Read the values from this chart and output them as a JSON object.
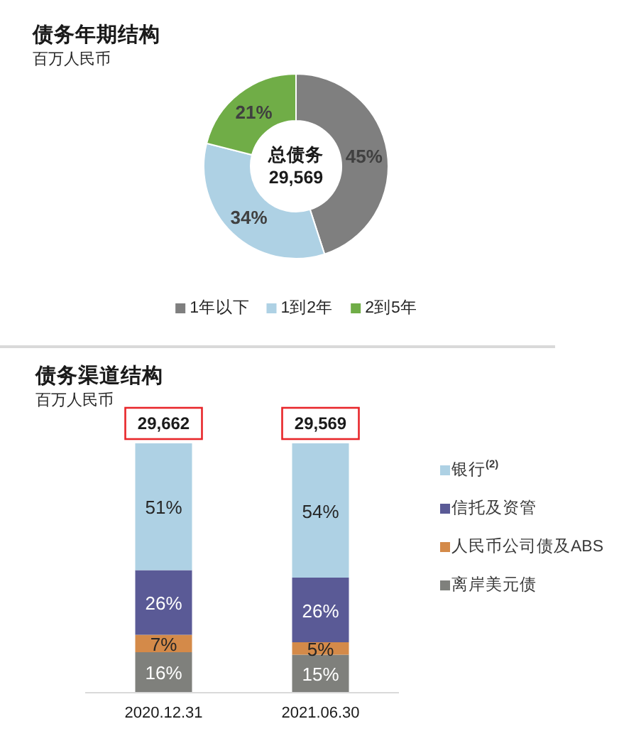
{
  "chart_data": [
    {
      "type": "donut",
      "title": "债务年期结构",
      "subtitle": "百万人民币",
      "categories": [
        "1年以下",
        "1到2年",
        "2到5年"
      ],
      "values": [
        45,
        34,
        21
      ],
      "colors": [
        "#7f7f7f",
        "#aed1e4",
        "#70ad47"
      ],
      "value_labels": [
        "45%",
        "34%",
        "21%"
      ],
      "annotations": [
        "总债务",
        "29,569"
      ],
      "legend": "bottom"
    },
    {
      "type": "bar",
      "title": "债务渠道结构",
      "subtitle": "百万人民币",
      "categories": [
        "2020.12.31",
        "2021.06.30"
      ],
      "stacked": true,
      "series": [
        {
          "name": "离岸美元债",
          "color": "#7f807c",
          "values": [
            16,
            15
          ],
          "value_labels": [
            "16%",
            "15%"
          ]
        },
        {
          "name": "人民币公司债及ABS",
          "color": "#d48a49",
          "values": [
            7,
            5
          ],
          "value_labels": [
            "7%",
            "5%"
          ]
        },
        {
          "name": "信托及资管",
          "color": "#5a5a96",
          "values": [
            26,
            26
          ],
          "value_labels": [
            "26%",
            "26%"
          ]
        },
        {
          "name": "银行$^{(2)}$",
          "color": "#aed1e4",
          "values": [
            51,
            54
          ],
          "value_labels": [
            "51%",
            "54%"
          ]
        }
      ],
      "annotations": [
        {
          "text": "29,662",
          "x": "2020.12.31",
          "y": 100
        },
        {
          "text": "29,569",
          "x": "2021.06.30",
          "y": 100
        }
      ],
      "legend": "right"
    }
  ]
}
